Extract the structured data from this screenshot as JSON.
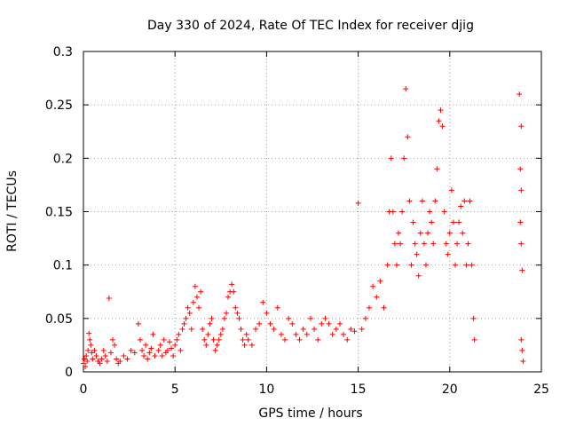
{
  "chart_data": {
    "type": "scatter",
    "title": "Day 330 of 2024, Rate Of TEC Index for receiver djig",
    "xlabel": "GPS time / hours",
    "ylabel": "ROTI / TECUs",
    "xlim": [
      0,
      25
    ],
    "ylim": [
      0,
      0.3
    ],
    "x_ticks": [
      0,
      5,
      10,
      15,
      20,
      25
    ],
    "x_tick_labels": [
      "0",
      "5",
      "10",
      "15",
      "20",
      "25"
    ],
    "y_ticks": [
      0,
      0.05,
      0.1,
      0.15,
      0.2,
      0.25,
      0.3
    ],
    "y_tick_labels": [
      "0",
      "0.05",
      "0.1",
      "0.15",
      "0.2",
      "0.25",
      "0.3"
    ],
    "grid": true,
    "marker": "+",
    "color": "#ff0000",
    "series": [
      {
        "name": "ROTI",
        "points": [
          [
            0.0,
            0.008
          ],
          [
            0.05,
            0.012
          ],
          [
            0.1,
            0.005
          ],
          [
            0.15,
            0.015
          ],
          [
            0.2,
            0.01
          ],
          [
            0.25,
            0.02
          ],
          [
            0.3,
            0.036
          ],
          [
            0.35,
            0.03
          ],
          [
            0.4,
            0.025
          ],
          [
            0.45,
            0.018
          ],
          [
            0.5,
            0.012
          ],
          [
            0.6,
            0.02
          ],
          [
            0.7,
            0.015
          ],
          [
            0.8,
            0.01
          ],
          [
            0.9,
            0.008
          ],
          [
            1.0,
            0.012
          ],
          [
            1.1,
            0.02
          ],
          [
            1.2,
            0.015
          ],
          [
            1.3,
            0.01
          ],
          [
            1.4,
            0.069
          ],
          [
            1.5,
            0.018
          ],
          [
            1.6,
            0.03
          ],
          [
            1.7,
            0.025
          ],
          [
            1.8,
            0.012
          ],
          [
            1.9,
            0.008
          ],
          [
            2.0,
            0.01
          ],
          [
            2.2,
            0.015
          ],
          [
            2.4,
            0.012
          ],
          [
            2.6,
            0.02
          ],
          [
            2.8,
            0.018
          ],
          [
            3.0,
            0.045
          ],
          [
            3.1,
            0.03
          ],
          [
            3.2,
            0.02
          ],
          [
            3.3,
            0.015
          ],
          [
            3.4,
            0.025
          ],
          [
            3.5,
            0.012
          ],
          [
            3.6,
            0.018
          ],
          [
            3.7,
            0.022
          ],
          [
            3.8,
            0.035
          ],
          [
            3.9,
            0.015
          ],
          [
            4.1,
            0.02
          ],
          [
            4.2,
            0.025
          ],
          [
            4.3,
            0.015
          ],
          [
            4.4,
            0.03
          ],
          [
            4.5,
            0.018
          ],
          [
            4.6,
            0.02
          ],
          [
            4.7,
            0.028
          ],
          [
            4.8,
            0.022
          ],
          [
            4.9,
            0.015
          ],
          [
            5.0,
            0.025
          ],
          [
            5.1,
            0.03
          ],
          [
            5.2,
            0.035
          ],
          [
            5.3,
            0.02
          ],
          [
            5.4,
            0.04
          ],
          [
            5.5,
            0.045
          ],
          [
            5.6,
            0.05
          ],
          [
            5.7,
            0.06
          ],
          [
            5.8,
            0.055
          ],
          [
            5.9,
            0.04
          ],
          [
            6.0,
            0.065
          ],
          [
            6.1,
            0.08
          ],
          [
            6.2,
            0.07
          ],
          [
            6.3,
            0.06
          ],
          [
            6.4,
            0.075
          ],
          [
            6.5,
            0.04
          ],
          [
            6.6,
            0.03
          ],
          [
            6.7,
            0.025
          ],
          [
            6.8,
            0.035
          ],
          [
            6.9,
            0.045
          ],
          [
            7.0,
            0.05
          ],
          [
            7.1,
            0.03
          ],
          [
            7.2,
            0.02
          ],
          [
            7.3,
            0.025
          ],
          [
            7.4,
            0.03
          ],
          [
            7.5,
            0.035
          ],
          [
            7.6,
            0.04
          ],
          [
            7.7,
            0.05
          ],
          [
            7.8,
            0.055
          ],
          [
            7.9,
            0.07
          ],
          [
            8.0,
            0.075
          ],
          [
            8.1,
            0.082
          ],
          [
            8.2,
            0.075
          ],
          [
            8.3,
            0.06
          ],
          [
            8.4,
            0.055
          ],
          [
            8.5,
            0.05
          ],
          [
            8.6,
            0.04
          ],
          [
            8.7,
            0.03
          ],
          [
            8.8,
            0.025
          ],
          [
            8.9,
            0.035
          ],
          [
            9.0,
            0.03
          ],
          [
            9.2,
            0.025
          ],
          [
            9.4,
            0.04
          ],
          [
            9.6,
            0.045
          ],
          [
            9.8,
            0.065
          ],
          [
            10.0,
            0.055
          ],
          [
            10.2,
            0.045
          ],
          [
            10.4,
            0.04
          ],
          [
            10.6,
            0.06
          ],
          [
            10.8,
            0.035
          ],
          [
            11.0,
            0.03
          ],
          [
            11.2,
            0.05
          ],
          [
            11.4,
            0.045
          ],
          [
            11.6,
            0.035
          ],
          [
            11.8,
            0.03
          ],
          [
            12.0,
            0.04
          ],
          [
            12.2,
            0.035
          ],
          [
            12.4,
            0.05
          ],
          [
            12.6,
            0.04
          ],
          [
            12.8,
            0.03
          ],
          [
            13.0,
            0.045
          ],
          [
            13.2,
            0.05
          ],
          [
            13.4,
            0.045
          ],
          [
            13.6,
            0.035
          ],
          [
            13.8,
            0.04
          ],
          [
            14.0,
            0.045
          ],
          [
            14.2,
            0.035
          ],
          [
            14.4,
            0.03
          ],
          [
            14.6,
            0.04
          ],
          [
            14.8,
            0.038
          ],
          [
            15.0,
            0.158
          ],
          [
            15.2,
            0.04
          ],
          [
            15.4,
            0.05
          ],
          [
            15.6,
            0.06
          ],
          [
            15.8,
            0.08
          ],
          [
            16.0,
            0.07
          ],
          [
            16.2,
            0.085
          ],
          [
            16.4,
            0.06
          ],
          [
            16.6,
            0.1
          ],
          [
            16.7,
            0.15
          ],
          [
            16.8,
            0.2
          ],
          [
            16.9,
            0.15
          ],
          [
            17.0,
            0.12
          ],
          [
            17.1,
            0.1
          ],
          [
            17.2,
            0.13
          ],
          [
            17.3,
            0.12
          ],
          [
            17.4,
            0.15
          ],
          [
            17.5,
            0.2
          ],
          [
            17.6,
            0.265
          ],
          [
            17.7,
            0.22
          ],
          [
            17.8,
            0.16
          ],
          [
            17.9,
            0.1
          ],
          [
            18.0,
            0.14
          ],
          [
            18.1,
            0.12
          ],
          [
            18.2,
            0.11
          ],
          [
            18.3,
            0.09
          ],
          [
            18.4,
            0.13
          ],
          [
            18.5,
            0.16
          ],
          [
            18.6,
            0.12
          ],
          [
            18.7,
            0.1
          ],
          [
            18.8,
            0.13
          ],
          [
            18.9,
            0.15
          ],
          [
            19.0,
            0.14
          ],
          [
            19.1,
            0.12
          ],
          [
            19.2,
            0.16
          ],
          [
            19.3,
            0.19
          ],
          [
            19.4,
            0.235
          ],
          [
            19.5,
            0.245
          ],
          [
            19.6,
            0.23
          ],
          [
            19.7,
            0.15
          ],
          [
            19.8,
            0.12
          ],
          [
            19.9,
            0.11
          ],
          [
            20.0,
            0.13
          ],
          [
            20.1,
            0.17
          ],
          [
            20.2,
            0.14
          ],
          [
            20.3,
            0.1
          ],
          [
            20.4,
            0.12
          ],
          [
            20.5,
            0.14
          ],
          [
            20.6,
            0.155
          ],
          [
            20.7,
            0.13
          ],
          [
            20.8,
            0.16
          ],
          [
            20.9,
            0.1
          ],
          [
            21.0,
            0.12
          ],
          [
            21.1,
            0.16
          ],
          [
            21.2,
            0.1
          ],
          [
            21.3,
            0.05
          ],
          [
            21.35,
            0.03
          ],
          [
            23.8,
            0.26
          ],
          [
            23.9,
            0.23
          ],
          [
            23.85,
            0.19
          ],
          [
            23.9,
            0.17
          ],
          [
            23.85,
            0.14
          ],
          [
            23.9,
            0.12
          ],
          [
            23.95,
            0.095
          ],
          [
            23.9,
            0.03
          ],
          [
            23.95,
            0.02
          ],
          [
            24.0,
            0.01
          ]
        ]
      }
    ]
  }
}
